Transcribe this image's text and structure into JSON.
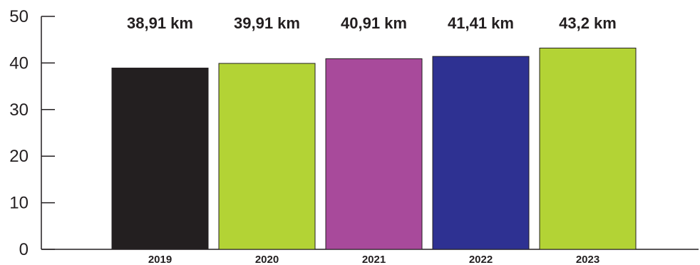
{
  "chart_data": {
    "type": "bar",
    "title": "",
    "xlabel": "",
    "ylabel": "",
    "categories": [
      "2019",
      "2020",
      "2021",
      "2022",
      "2023"
    ],
    "values": [
      38.91,
      39.91,
      40.91,
      41.41,
      43.2
    ],
    "data_labels": [
      "38,91 km",
      "39,91 km",
      "40,91 km",
      "41,41 km",
      "43,2 km"
    ],
    "colors": [
      "#231f20",
      "#b3d335",
      "#a84a9b",
      "#2e3192",
      "#b3d335"
    ],
    "ylim": [
      0,
      50
    ],
    "yticks": [
      0,
      10,
      20,
      30,
      40,
      50
    ],
    "grid": false,
    "legend": "none"
  }
}
